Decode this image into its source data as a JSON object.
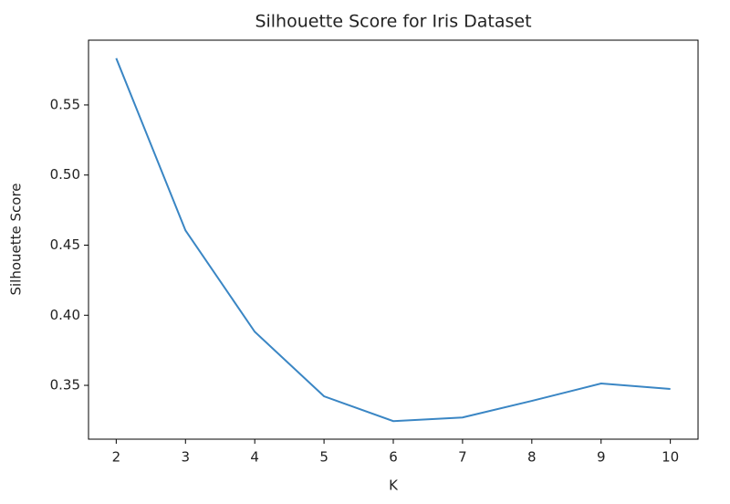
{
  "chart_data": {
    "type": "line",
    "title": "Silhouette Score for Iris Dataset",
    "x_label": "K",
    "y_label": "Silhouette Score",
    "x": [
      2,
      3,
      4,
      5,
      6,
      7,
      8,
      9,
      10
    ],
    "series": [
      {
        "color": "#3a86c4",
        "values": [
          0.5833,
          0.4605,
          0.3882,
          0.3422,
          0.3245,
          0.3271,
          0.3389,
          0.3513,
          0.3474
        ]
      }
    ],
    "xlim": [
      1.6,
      10.4
    ],
    "xticks": [
      2,
      3,
      4,
      5,
      6,
      7,
      8,
      9,
      10
    ],
    "ylim": [
      0.3116,
      0.5962
    ],
    "yticks": [
      {
        "value": 0.35,
        "label": "0.35"
      },
      {
        "value": 0.4,
        "label": "0.40"
      },
      {
        "value": 0.45,
        "label": "0.45"
      },
      {
        "value": 0.5,
        "label": "0.50"
      },
      {
        "value": 0.55,
        "label": "0.55"
      }
    ],
    "grid": false
  }
}
